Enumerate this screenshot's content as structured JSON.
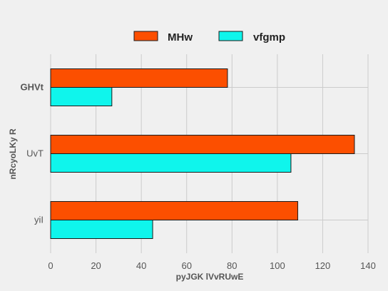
{
  "chart_data": {
    "type": "bar",
    "orientation": "horizontal",
    "categories": [
      "GHVt",
      "UvT",
      "yiI"
    ],
    "series": [
      {
        "name": "MHw",
        "values": [
          78,
          134,
          109
        ],
        "color": "#fc4f00"
      },
      {
        "name": "vfgmp",
        "values": [
          27,
          106,
          45
        ],
        "color": "#0ff5ec"
      }
    ],
    "xlabel": "pyJGK lVvRUwE",
    "ylabel": "nRcyoLKy  R",
    "xlim": [
      0,
      140
    ],
    "xticks": [
      0,
      20,
      40,
      60,
      80,
      100,
      120,
      140
    ],
    "grid": true,
    "legend_position": "top-center",
    "background": "#f0f0f0",
    "grid_color": "#cbcbcb"
  }
}
